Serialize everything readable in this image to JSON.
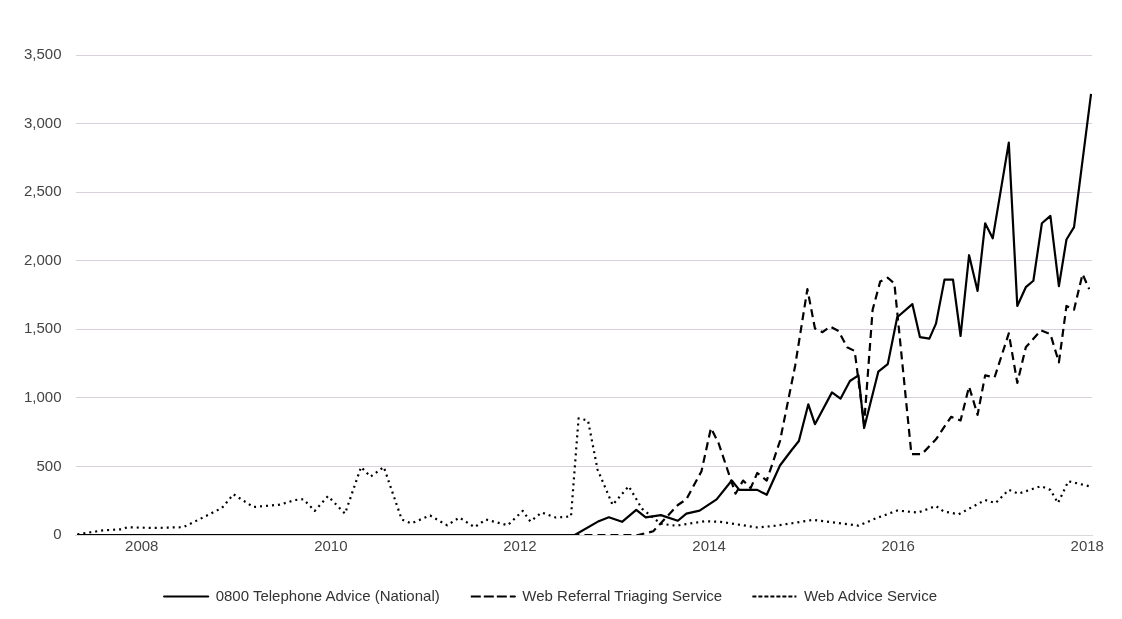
{
  "chart_data": {
    "type": "line",
    "legend": "bottom",
    "grid": "y",
    "marker": "none",
    "xlim": [
      2007.3,
      2018.05
    ],
    "xticks": [
      2008,
      2010,
      2012,
      2014,
      2016,
      2018
    ],
    "ylim": [
      0,
      3500
    ],
    "yticks": [
      0,
      500,
      {
        "value": 1000,
        "label": "1,000"
      },
      {
        "value": 1500,
        "label": "1,500"
      },
      {
        "value": 2000,
        "label": "2,000"
      },
      {
        "value": 2500,
        "label": "2,500"
      },
      {
        "value": 3000,
        "label": "3,000"
      },
      {
        "value": 3500,
        "label": "3,500"
      }
    ],
    "series": [
      {
        "name": "0800 Telephone Advice (National)",
        "color": "#000000",
        "line_style": "solid",
        "x": [
          2007.32,
          2012.58,
          2012.82,
          2012.94,
          2013.08,
          2013.23,
          2013.33,
          2013.49,
          2013.67,
          2013.76,
          2013.9,
          2014.08,
          2014.24,
          2014.32,
          2014.51,
          2014.61,
          2014.75,
          2014.87,
          2014.95,
          2015.05,
          2015.12,
          2015.3,
          2015.39,
          2015.49,
          2015.58,
          2015.64,
          2015.79,
          2015.89,
          2015.99,
          2016.15,
          2016.23,
          2016.33,
          2016.4,
          2016.49,
          2016.58,
          2016.66,
          2016.75,
          2016.84,
          2016.92,
          2017.0,
          2017.17,
          2017.26,
          2017.35,
          2017.43,
          2017.52,
          2017.61,
          2017.7,
          2017.78,
          2017.86,
          2018.04
        ],
        "values": [
          0,
          0,
          96,
          129,
          96,
          183,
          129,
          145,
          104,
          156,
          178,
          260,
          397,
          329,
          329,
          293,
          507,
          616,
          685,
          953,
          808,
          1040,
          994,
          1123,
          1164,
          780,
          1191,
          1246,
          1588,
          1684,
          1443,
          1432,
          1541,
          1862,
          1862,
          1451,
          2040,
          1780,
          2273,
          2163,
          2861,
          1670,
          1807,
          1854,
          2273,
          2327,
          1815,
          2155,
          2245,
          3217
        ]
      },
      {
        "name": "Web Referral Triaging Service",
        "color": "#000000",
        "line_style": "dashed",
        "x": [
          2007.32,
          2013.25,
          2013.41,
          2013.67,
          2013.76,
          2013.92,
          2014.02,
          2014.1,
          2014.28,
          2014.36,
          2014.44,
          2014.51,
          2014.61,
          2014.75,
          2014.91,
          2015.04,
          2015.12,
          2015.2,
          2015.28,
          2015.37,
          2015.46,
          2015.54,
          2015.64,
          2015.73,
          2015.81,
          2015.89,
          2015.96,
          2016.14,
          2016.25,
          2016.4,
          2016.56,
          2016.66,
          2016.75,
          2016.84,
          2016.92,
          2017.02,
          2017.17,
          2017.26,
          2017.35,
          2017.51,
          2017.61,
          2017.7,
          2017.78,
          2017.86,
          2017.95,
          2018.02
        ],
        "values": [
          0,
          0,
          27,
          219,
          260,
          465,
          780,
          671,
          301,
          397,
          342,
          452,
          397,
          685,
          1232,
          1793,
          1506,
          1479,
          1520,
          1487,
          1369,
          1342,
          808,
          1643,
          1848,
          1876,
          1834,
          589,
          589,
          698,
          862,
          835,
          1082,
          876,
          1164,
          1150,
          1470,
          1109,
          1369,
          1492,
          1465,
          1259,
          1670,
          1643,
          1903,
          1793
        ]
      },
      {
        "name": "Web Advice Service",
        "color": "#000000",
        "line_style": "dotted",
        "x": [
          2007.32,
          2007.59,
          2007.79,
          2007.85,
          2008.12,
          2008.44,
          2008.69,
          2008.85,
          2008.97,
          2009.18,
          2009.46,
          2009.62,
          2009.71,
          2009.83,
          2009.97,
          2010.15,
          2010.32,
          2010.42,
          2010.56,
          2010.75,
          2010.85,
          2011.05,
          2011.23,
          2011.36,
          2011.52,
          2011.64,
          2011.87,
          2012.03,
          2012.11,
          2012.23,
          2012.38,
          2012.54,
          2012.62,
          2012.72,
          2012.82,
          2012.98,
          2013.15,
          2013.29,
          2013.49,
          2013.65,
          2013.96,
          2014.12,
          2014.51,
          2014.71,
          2015.1,
          2015.58,
          2015.77,
          2015.99,
          2016.21,
          2016.4,
          2016.48,
          2016.64,
          2016.92,
          2017.03,
          2017.17,
          2017.27,
          2017.51,
          2017.61,
          2017.69,
          2017.8,
          2018.02
        ],
        "values": [
          5,
          34,
          42,
          57,
          51,
          57,
          142,
          198,
          297,
          204,
          221,
          255,
          261,
          176,
          283,
          156,
          496,
          425,
          496,
          113,
          85,
          142,
          71,
          127,
          57,
          113,
          71,
          176,
          99,
          164,
          127,
          136,
          850,
          835,
          479,
          219,
          356,
          192,
          82,
          68,
          101,
          96,
          55,
          68,
          110,
          68,
          123,
          178,
          164,
          211,
          172,
          151,
          255,
          233,
          329,
          301,
          356,
          329,
          233,
          392,
          356
        ]
      }
    ]
  }
}
